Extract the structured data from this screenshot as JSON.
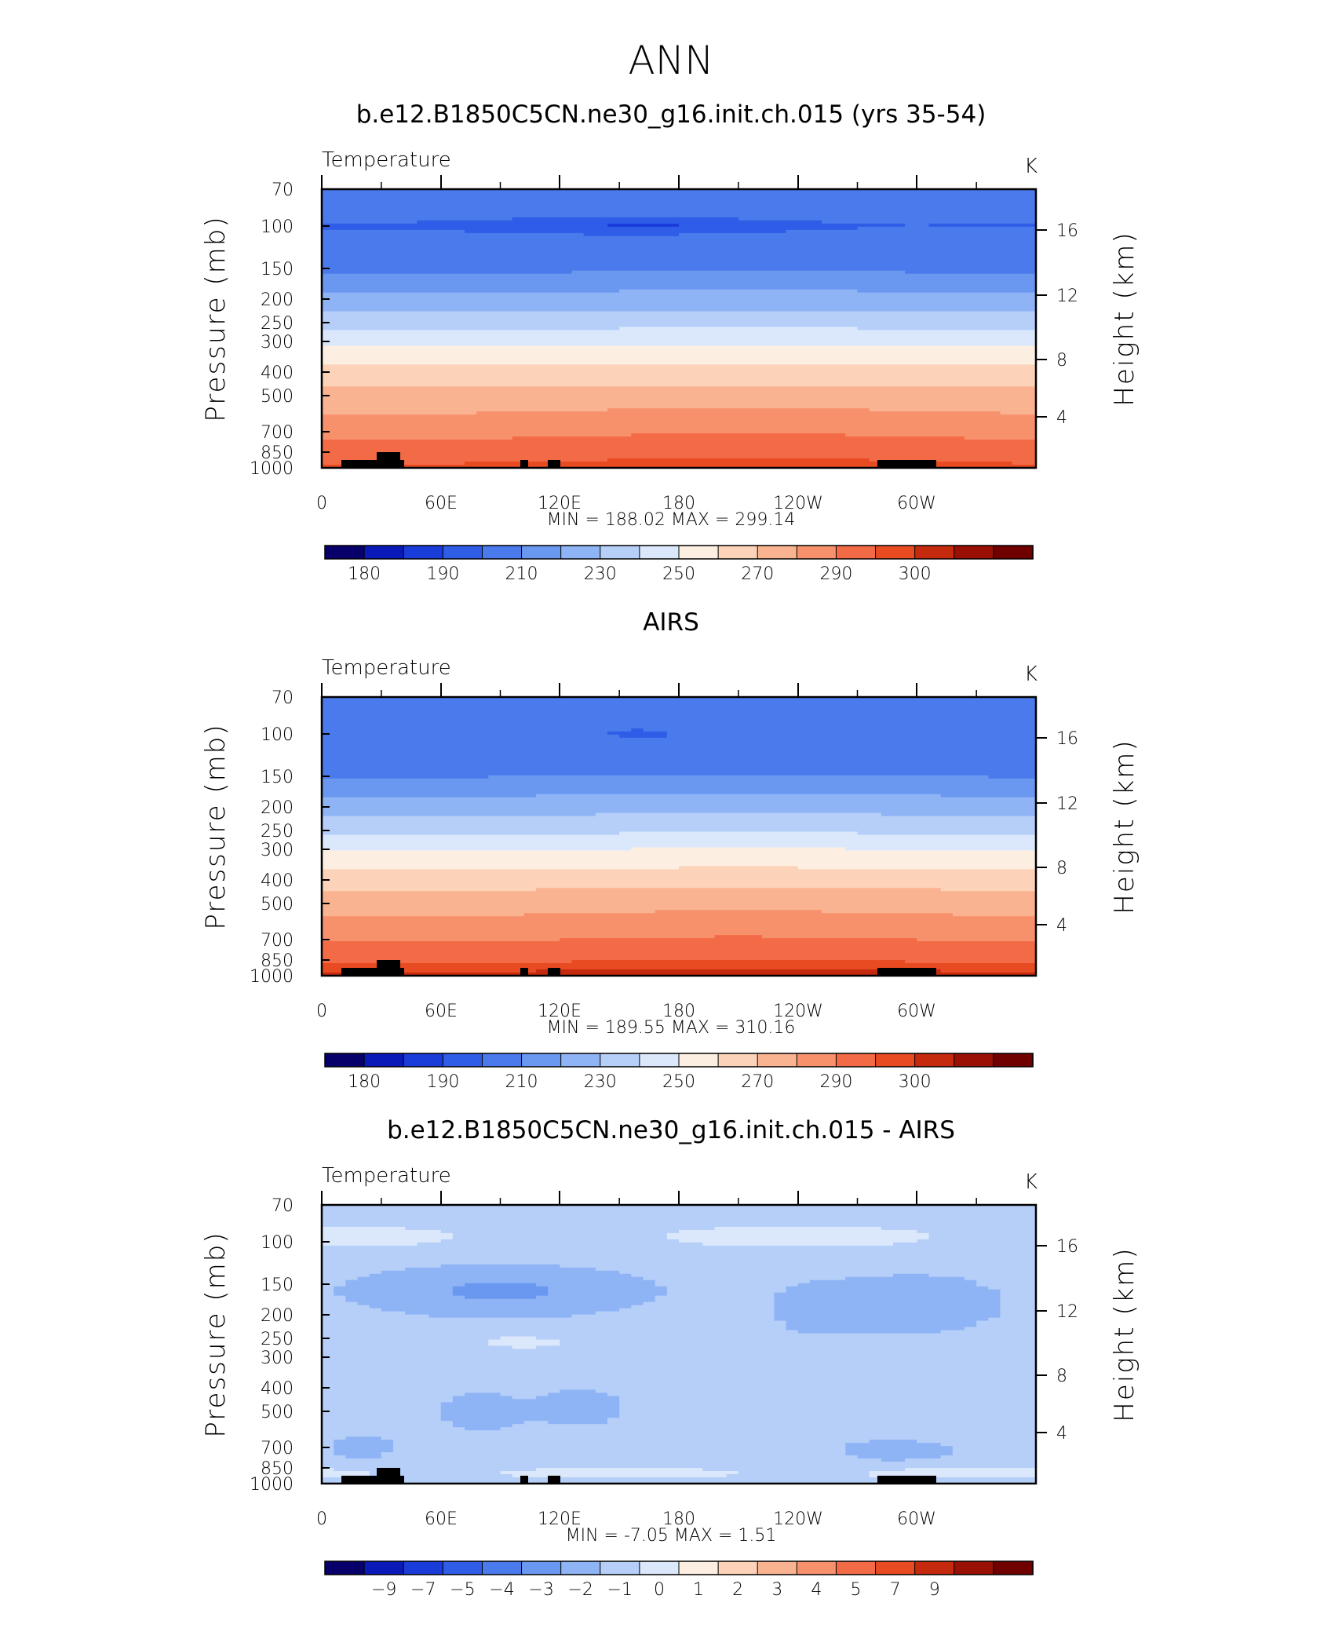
{
  "page_title": "ANN",
  "colors": {
    "temp_scale": [
      "#08006a",
      "#0a1ab8",
      "#1a3cd8",
      "#2f5de8",
      "#4a7aeb",
      "#6a98f0",
      "#8fb4f5",
      "#b6cff8",
      "#dbe8fb",
      "#fdeee2",
      "#fcd2b8",
      "#fab391",
      "#f7916c",
      "#f36b46",
      "#e84a22",
      "#c52a0e",
      "#9a1004",
      "#700000"
    ],
    "diff_scale": [
      "#08006a",
      "#0a1ab8",
      "#1a3cd8",
      "#2f5de8",
      "#4a7aeb",
      "#6a98f0",
      "#8fb4f5",
      "#b6cff8",
      "#dbe8fb",
      "#fdeee2",
      "#fcd2b8",
      "#fab391",
      "#f7916c",
      "#f36b46",
      "#e84a22",
      "#c52a0e",
      "#9a1004",
      "#700000"
    ],
    "topography": "#000000"
  },
  "chart_data": [
    {
      "type": "heatmap",
      "title": "b.e12.B1850C5CN.ne30_g16.init.ch.015 (yrs 35-54)",
      "left_subtitle": "Temperature",
      "right_subtitle": "K",
      "ylabel": "Pressure (mb)",
      "y2label": "Height (km)",
      "x_tick_labels": [
        "0",
        "60E",
        "120E",
        "180",
        "120W",
        "60W"
      ],
      "y_tick_labels": [
        "70",
        "100",
        "150",
        "200",
        "250",
        "300",
        "400",
        "500",
        "700",
        "850",
        "1000"
      ],
      "y2_tick_labels": [
        "16",
        "12",
        "8",
        "4"
      ],
      "x_range": [
        0,
        360
      ],
      "y_range": [
        1000,
        70
      ],
      "y_scale": "log",
      "stats": {
        "min_label": "MIN",
        "min": "188.02",
        "max_label": "MAX",
        "max": "299.14"
      },
      "colorbar_labels": [
        "180",
        "190",
        "210",
        "230",
        "250",
        "270",
        "290",
        "300"
      ],
      "colorbar_levels": [
        175,
        180,
        185,
        190,
        200,
        210,
        220,
        230,
        240,
        250,
        260,
        270,
        280,
        290,
        295,
        300,
        305
      ],
      "profile": {
        "p": [
          70,
          100,
          150,
          200,
          250,
          300,
          400,
          500,
          700,
          850,
          1000
        ],
        "t": [
          197,
          190,
          198,
          214,
          226,
          238,
          254,
          264,
          278,
          286,
          293
        ]
      },
      "anomalies": [
        {
          "lon_c": 165,
          "lon_w": 200,
          "p": 100,
          "dt": -6
        }
      ]
    },
    {
      "type": "heatmap",
      "title": "AIRS",
      "left_subtitle": "Temperature",
      "right_subtitle": "K",
      "ylabel": "Pressure (mb)",
      "y2label": "Height (km)",
      "x_tick_labels": [
        "0",
        "60E",
        "120E",
        "180",
        "120W",
        "60W"
      ],
      "y_tick_labels": [
        "70",
        "100",
        "150",
        "200",
        "250",
        "300",
        "400",
        "500",
        "700",
        "850",
        "1000"
      ],
      "y2_tick_labels": [
        "16",
        "12",
        "8",
        "4"
      ],
      "x_range": [
        0,
        360
      ],
      "y_range": [
        1000,
        70
      ],
      "y_scale": "log",
      "stats": {
        "min_label": "MIN",
        "min": "189.55",
        "max_label": "MAX",
        "max": "310.16"
      },
      "colorbar_labels": [
        "180",
        "190",
        "210",
        "230",
        "250",
        "270",
        "290",
        "300"
      ],
      "colorbar_levels": [
        175,
        180,
        185,
        190,
        200,
        210,
        220,
        230,
        240,
        250,
        260,
        270,
        280,
        290,
        295,
        300,
        305
      ],
      "profile": {
        "p": [
          70,
          100,
          150,
          200,
          250,
          300,
          400,
          500,
          700,
          850,
          1000
        ],
        "t": [
          198,
          192,
          200,
          216,
          228,
          240,
          256,
          266,
          280,
          289,
          298
        ]
      },
      "anomalies": [
        {
          "lon_c": 160,
          "lon_w": 60,
          "p": 100,
          "dt": -4
        }
      ]
    },
    {
      "type": "heatmap",
      "title": "b.e12.B1850C5CN.ne30_g16.init.ch.015 - AIRS",
      "left_subtitle": "Temperature",
      "right_subtitle": "K",
      "ylabel": "Pressure (mb)",
      "y2label": "Height (km)",
      "x_tick_labels": [
        "0",
        "60E",
        "120E",
        "180",
        "120W",
        "60W"
      ],
      "y_tick_labels": [
        "70",
        "100",
        "150",
        "200",
        "250",
        "300",
        "400",
        "500",
        "700",
        "850",
        "1000"
      ],
      "y2_tick_labels": [
        "16",
        "12",
        "8",
        "4"
      ],
      "x_range": [
        0,
        360
      ],
      "y_range": [
        1000,
        70
      ],
      "y_scale": "log",
      "stats": {
        "min_label": "MIN",
        "min": "-7.05",
        "max_label": "MAX",
        "max": "1.51"
      },
      "colorbar_labels": [
        "−9",
        "−7",
        "−5",
        "−4",
        "−3",
        "−2",
        "−1",
        "0",
        "1",
        "2",
        "3",
        "4",
        "5",
        "7",
        "9"
      ],
      "colorbar_levels": [
        -9,
        -8,
        -7,
        -6,
        -5,
        -4,
        -3,
        -2,
        -1,
        0,
        1,
        2,
        3,
        4,
        5,
        7,
        9
      ]
    }
  ]
}
